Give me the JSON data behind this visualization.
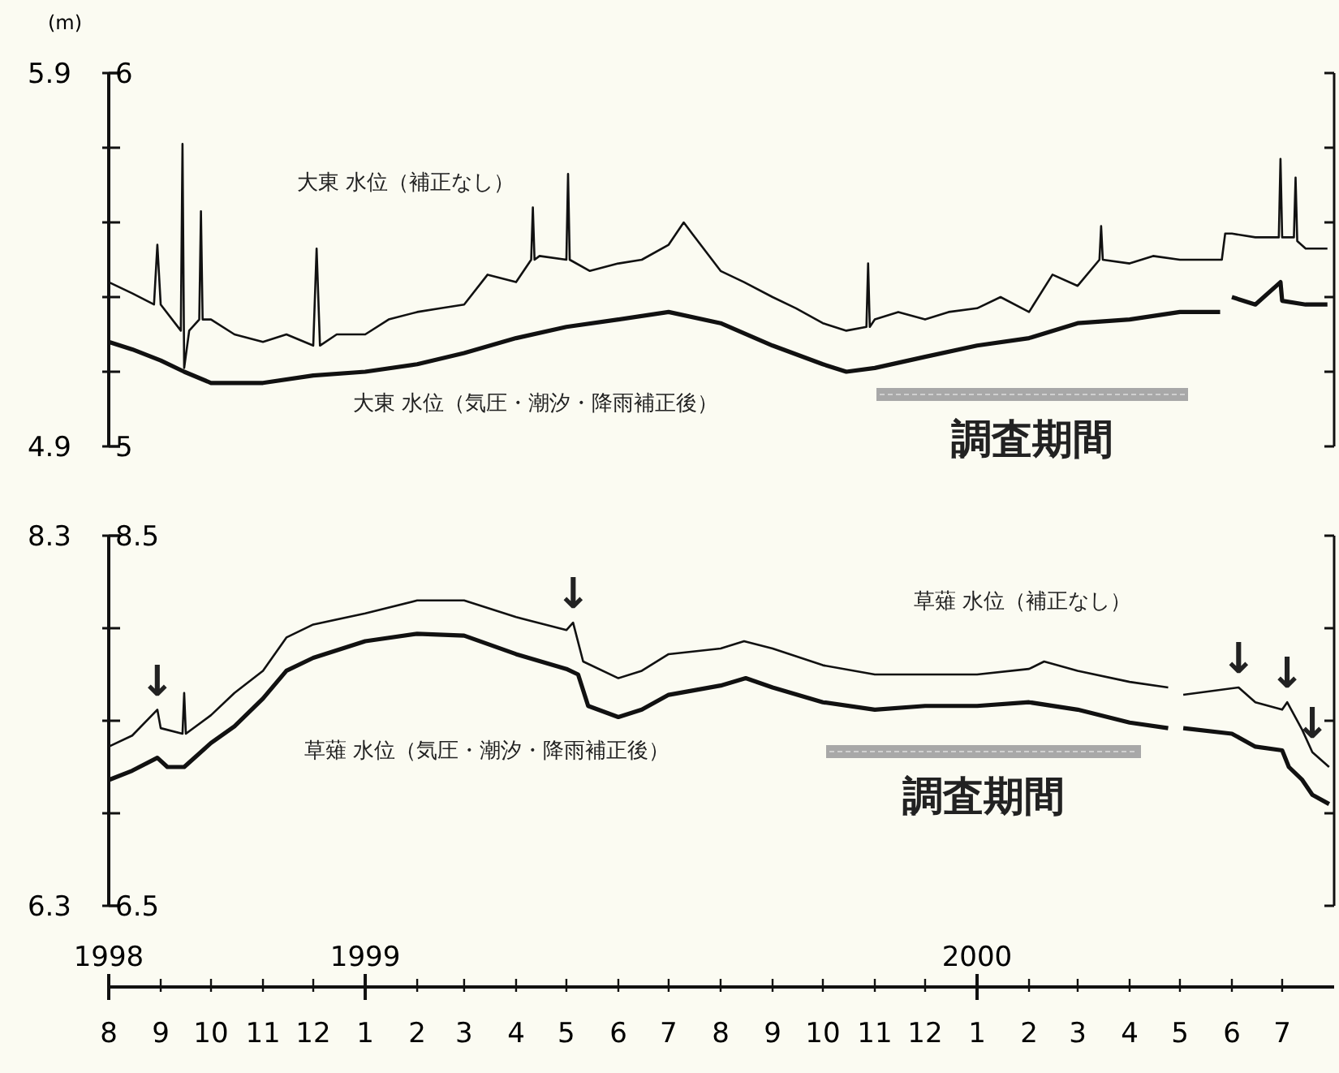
{
  "chart_data": [
    {
      "type": "line",
      "ylabel": "(m)",
      "xlim": [
        "1998-08-01",
        "2000-08-01"
      ],
      "ylim": [
        4.9,
        5.9
      ],
      "yticks": [
        4.9,
        {
          "value": 5.1,
          "label": null
        },
        {
          "value": 5.3,
          "label": null
        },
        {
          "value": 5.5,
          "label": null
        },
        {
          "value": 5.7,
          "label": null
        },
        5.9
      ],
      "y2lim": [
        5,
        6
      ],
      "y2ticks": [
        5,
        6
      ],
      "tick_labels": "y",
      "series": [
        {
          "color": "#111111",
          "x": [
            "1998-08-01",
            "1998-08-15",
            "1998-08-28",
            "1998-08-30",
            "1998-09-01",
            "1998-09-13",
            "1998-09-14",
            "1998-09-15",
            "1998-09-18",
            "1998-09-24",
            "1998-09-25",
            "1998-09-26",
            "1998-10-01",
            "1998-10-15",
            "1998-11-01",
            "1998-11-15",
            "1998-12-01",
            "1998-12-03",
            "1998-12-05",
            "1998-12-15",
            "1999-01-01",
            "1999-01-15",
            "1999-02-01",
            "1999-02-15",
            "1999-03-01",
            "1999-03-15",
            "1999-04-01",
            "1999-04-10",
            "1999-04-11",
            "1999-04-12",
            "1999-04-15",
            "1999-05-01",
            "1999-05-02",
            "1999-05-03",
            "1999-05-15",
            "1999-06-01",
            "1999-06-15",
            "1999-07-01",
            "1999-07-10",
            "1999-07-15",
            "1999-08-01",
            "1999-08-15",
            "1999-09-01",
            "1999-09-15",
            "1999-10-01",
            "1999-10-15",
            "1999-10-27",
            "1999-10-28",
            "1999-10-29",
            "1999-11-01",
            "1999-11-15",
            "1999-12-01",
            "1999-12-15",
            "2000-01-01",
            "2000-01-15",
            "2000-02-01",
            "2000-02-15",
            "2000-03-01",
            "2000-03-14",
            "2000-03-15",
            "2000-03-16",
            "2000-04-01",
            "2000-04-15",
            "2000-05-01",
            "2000-05-15",
            "2000-05-26",
            "2000-05-28",
            "2000-06-01",
            "2000-06-15",
            "2000-06-29",
            "2000-06-30",
            "2000-07-01",
            "2000-07-08",
            "2000-07-09",
            "2000-07-10",
            "2000-07-15",
            "2000-07-28"
          ],
          "values": [
            5.34,
            5.31,
            5.28,
            5.44,
            5.28,
            5.21,
            5.71,
            5.11,
            5.21,
            5.24,
            5.53,
            5.24,
            5.24,
            5.2,
            5.18,
            5.2,
            5.17,
            5.43,
            5.17,
            5.2,
            5.2,
            5.24,
            5.26,
            5.27,
            5.28,
            5.36,
            5.34,
            5.4,
            5.54,
            5.4,
            5.41,
            5.4,
            5.63,
            5.4,
            5.37,
            5.39,
            5.4,
            5.44,
            5.5,
            5.47,
            5.37,
            5.34,
            5.3,
            5.27,
            5.23,
            5.21,
            5.22,
            5.39,
            5.22,
            5.24,
            5.26,
            5.24,
            5.26,
            5.27,
            5.3,
            5.26,
            5.36,
            5.33,
            5.4,
            5.49,
            5.4,
            5.39,
            5.41,
            5.4,
            5.4,
            5.4,
            5.47,
            5.47,
            5.46,
            5.46,
            5.67,
            5.46,
            5.46,
            5.62,
            5.45,
            5.43,
            5.43
          ]
        },
        {
          "color": "#111111",
          "axis": "y2",
          "x": [
            "1998-08-01",
            "1998-08-15",
            "1998-09-01",
            "1998-09-15",
            "1998-10-01",
            "1998-10-15",
            "1998-11-01",
            "1998-12-01",
            "1999-01-01",
            "1999-02-01",
            "1999-03-01",
            "1999-04-01",
            "1999-05-01",
            "1999-06-01",
            "1999-07-01",
            "1999-08-01",
            "1999-09-01",
            "1999-10-01",
            "1999-10-15",
            "1999-11-01",
            "1999-12-01",
            "2000-01-01",
            "2000-02-01",
            "2000-03-01",
            "2000-04-01",
            "2000-05-01",
            "2000-05-25",
            "2000-05-29",
            "2000-06-01",
            "2000-06-15",
            "2000-06-30",
            "2000-07-01",
            "2000-07-15",
            "2000-07-28"
          ],
          "values": [
            5.28,
            5.26,
            5.23,
            5.2,
            5.17,
            5.17,
            5.17,
            5.19,
            5.2,
            5.22,
            5.25,
            5.29,
            5.32,
            5.34,
            5.36,
            5.33,
            5.27,
            5.22,
            5.2,
            5.21,
            5.24,
            5.27,
            5.29,
            5.33,
            5.34,
            5.36,
            5.36,
            null,
            5.4,
            5.38,
            5.44,
            5.39,
            5.38,
            5.38
          ]
        }
      ],
      "annotations": [
        "大東 水位（補正なし）",
        "大東 水位（気圧・潮汐・降雨補正後）",
        "調査期間"
      ]
    },
    {
      "type": "line",
      "xlim": [
        "1998-08-01",
        "2000-08-01"
      ],
      "ylim": [
        6.3,
        8.3
      ],
      "yticks": [
        6.3,
        {
          "value": 6.8,
          "label": null
        },
        {
          "value": 7.3,
          "label": null
        },
        {
          "value": 7.8,
          "label": null
        },
        8.3
      ],
      "y2lim": [
        6.5,
        8.5
      ],
      "y2ticks": [
        6.5,
        8.5
      ],
      "xticks": [
        {
          "value": "1998-08-01",
          "label": "8"
        },
        {
          "value": "1998-09-01",
          "label": "9"
        },
        {
          "value": "1998-10-01",
          "label": "10"
        },
        {
          "value": "1998-11-01",
          "label": "11"
        },
        {
          "value": "1998-12-01",
          "label": "12"
        },
        {
          "value": "1999-01-01",
          "label": "1"
        },
        {
          "value": "1999-02-01",
          "label": "2"
        },
        {
          "value": "1999-03-01",
          "label": "3"
        },
        {
          "value": "1999-04-01",
          "label": "4"
        },
        {
          "value": "1999-05-01",
          "label": "5"
        },
        {
          "value": "1999-06-01",
          "label": "6"
        },
        {
          "value": "1999-07-01",
          "label": "7"
        },
        {
          "value": "1999-08-01",
          "label": "8"
        },
        {
          "value": "1999-09-01",
          "label": "9"
        },
        {
          "value": "1999-10-01",
          "label": "10"
        },
        {
          "value": "1999-11-01",
          "label": "11"
        },
        {
          "value": "1999-12-01",
          "label": "12"
        },
        {
          "value": "2000-01-01",
          "label": "1"
        },
        {
          "value": "2000-02-01",
          "label": "2"
        },
        {
          "value": "2000-03-01",
          "label": "3"
        },
        {
          "value": "2000-04-01",
          "label": "4"
        },
        {
          "value": "2000-05-01",
          "label": "5"
        },
        {
          "value": "2000-06-01",
          "label": "6"
        },
        {
          "value": "2000-07-01",
          "label": "7"
        }
      ],
      "x2lim": [
        "1998-08-01",
        "2000-08-01"
      ],
      "x2ticks": [
        {
          "value": "1998-08-01",
          "label": "1998"
        },
        {
          "value": "1999-01-01",
          "label": "1999"
        },
        {
          "value": "2000-01-01",
          "label": "2000"
        }
      ],
      "series": [
        {
          "color": "#111111",
          "x": [
            "1998-08-01",
            "1998-08-15",
            "1998-08-30",
            "1998-09-01",
            "1998-09-14",
            "1998-09-15",
            "1998-09-16",
            "1998-10-01",
            "1998-10-15",
            "1998-11-01",
            "1998-11-15",
            "1998-12-01",
            "1999-01-01",
            "1999-02-01",
            "1999-03-01",
            "1999-04-01",
            "1999-05-01",
            "1999-05-05",
            "1999-05-11",
            "1999-06-01",
            "1999-06-15",
            "1999-07-01",
            "1999-08-01",
            "1999-08-15",
            "1999-09-01",
            "1999-10-01",
            "1999-11-01",
            "1999-12-01",
            "2000-01-01",
            "2000-02-01",
            "2000-02-10",
            "2000-03-01",
            "2000-04-01",
            "2000-04-24",
            "2000-04-28",
            "2000-05-03",
            "2000-06-05",
            "2000-06-15",
            "2000-07-01",
            "2000-07-04",
            "2000-07-13",
            "2000-07-19",
            "2000-07-29"
          ],
          "values": [
            7.16,
            7.22,
            7.36,
            7.26,
            7.23,
            7.45,
            7.23,
            7.33,
            7.45,
            7.57,
            7.75,
            7.82,
            7.88,
            7.95,
            7.95,
            7.86,
            7.79,
            7.83,
            7.62,
            7.53,
            7.57,
            7.66,
            7.69,
            7.73,
            7.69,
            7.6,
            7.55,
            7.55,
            7.55,
            7.58,
            7.62,
            7.57,
            7.51,
            7.48,
            null,
            7.44,
            7.48,
            7.4,
            7.36,
            7.4,
            7.25,
            7.13,
            7.05
          ]
        },
        {
          "color": "#111111",
          "axis": "y2",
          "x": [
            "1998-08-01",
            "1998-08-15",
            "1998-08-30",
            "1998-09-05",
            "1998-09-15",
            "1998-10-01",
            "1998-10-15",
            "1998-11-01",
            "1998-11-15",
            "1998-12-01",
            "1999-01-01",
            "1999-02-01",
            "1999-03-01",
            "1999-04-01",
            "1999-05-01",
            "1999-05-08",
            "1999-05-14",
            "1999-06-01",
            "1999-06-15",
            "1999-07-01",
            "1999-08-01",
            "1999-08-16",
            "1999-09-01",
            "1999-10-01",
            "1999-11-01",
            "1999-12-01",
            "2000-01-01",
            "2000-02-01",
            "2000-03-01",
            "2000-04-01",
            "2000-04-24",
            "2000-04-28",
            "2000-05-03",
            "2000-06-01",
            "2000-06-15",
            "2000-07-01",
            "2000-07-05",
            "2000-07-13",
            "2000-07-19",
            "2000-07-29"
          ],
          "values": [
            7.18,
            7.23,
            7.3,
            7.25,
            7.25,
            7.38,
            7.47,
            7.62,
            7.77,
            7.84,
            7.93,
            7.97,
            7.96,
            7.86,
            7.78,
            7.75,
            7.58,
            7.52,
            7.56,
            7.64,
            7.69,
            7.73,
            7.68,
            7.6,
            7.56,
            7.58,
            7.58,
            7.6,
            7.56,
            7.49,
            7.46,
            null,
            7.46,
            7.43,
            7.36,
            7.34,
            7.25,
            7.18,
            7.1,
            7.05
          ]
        }
      ],
      "annotations": [
        "草薙 水位（補正なし）",
        "草薙 水位（気圧・潮汐・降雨補正後）",
        "調査期間",
        {
          "text": "↓",
          "x": "1998-08-30",
          "y": 7.36
        },
        {
          "text": "↓",
          "x": "1999-05-05",
          "y": 7.83
        },
        {
          "text": "↓",
          "x": "2000-06-05",
          "y": 7.48
        },
        {
          "text": "↓",
          "x": "2000-07-04",
          "y": 7.4
        },
        {
          "text": "↓",
          "x": "2000-07-19",
          "y": 7.13
        }
      ]
    }
  ]
}
